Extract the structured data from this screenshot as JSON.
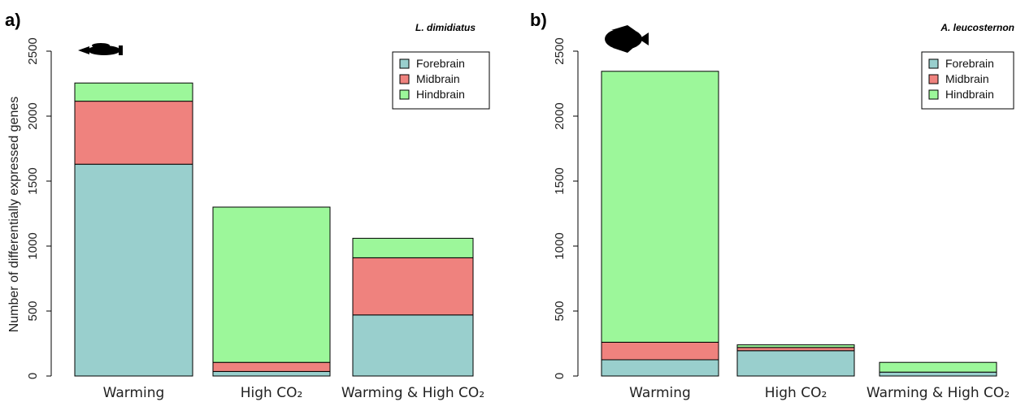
{
  "ylabel": "Number of differentially expressed genes",
  "colors": {
    "Forebrain": "#99CFCD",
    "Midbrain": "#EF827E",
    "Hindbrain": "#9CF79A"
  },
  "chart_data": [
    {
      "type": "bar",
      "panel_label": "a)",
      "title": "L. dimidiatus",
      "ylabel": "Number of differentially expressed genes",
      "ylim": [
        0,
        2500
      ],
      "yticks": [
        0,
        500,
        1000,
        1500,
        2000,
        2500
      ],
      "stacked": true,
      "legend_position": "top-right",
      "categories": [
        "Warming",
        "High CO₂",
        "Warming & High CO₂"
      ],
      "series": [
        {
          "name": "Forebrain",
          "values": [
            1630,
            35,
            470
          ]
        },
        {
          "name": "Midbrain",
          "values": [
            485,
            70,
            440
          ]
        },
        {
          "name": "Hindbrain",
          "values": [
            140,
            1195,
            150
          ]
        }
      ]
    },
    {
      "type": "bar",
      "panel_label": "b)",
      "title": "A. leucosternon",
      "ylabel": "",
      "ylim": [
        0,
        2500
      ],
      "yticks": [
        0,
        500,
        1000,
        1500,
        2000,
        2500
      ],
      "stacked": true,
      "legend_position": "top-right",
      "categories": [
        "Warming",
        "High CO₂",
        "Warming & High CO₂"
      ],
      "series": [
        {
          "name": "Forebrain",
          "values": [
            125,
            195,
            30
          ]
        },
        {
          "name": "Midbrain",
          "values": [
            135,
            25,
            0
          ]
        },
        {
          "name": "Hindbrain",
          "values": [
            2085,
            20,
            75
          ]
        }
      ]
    }
  ]
}
